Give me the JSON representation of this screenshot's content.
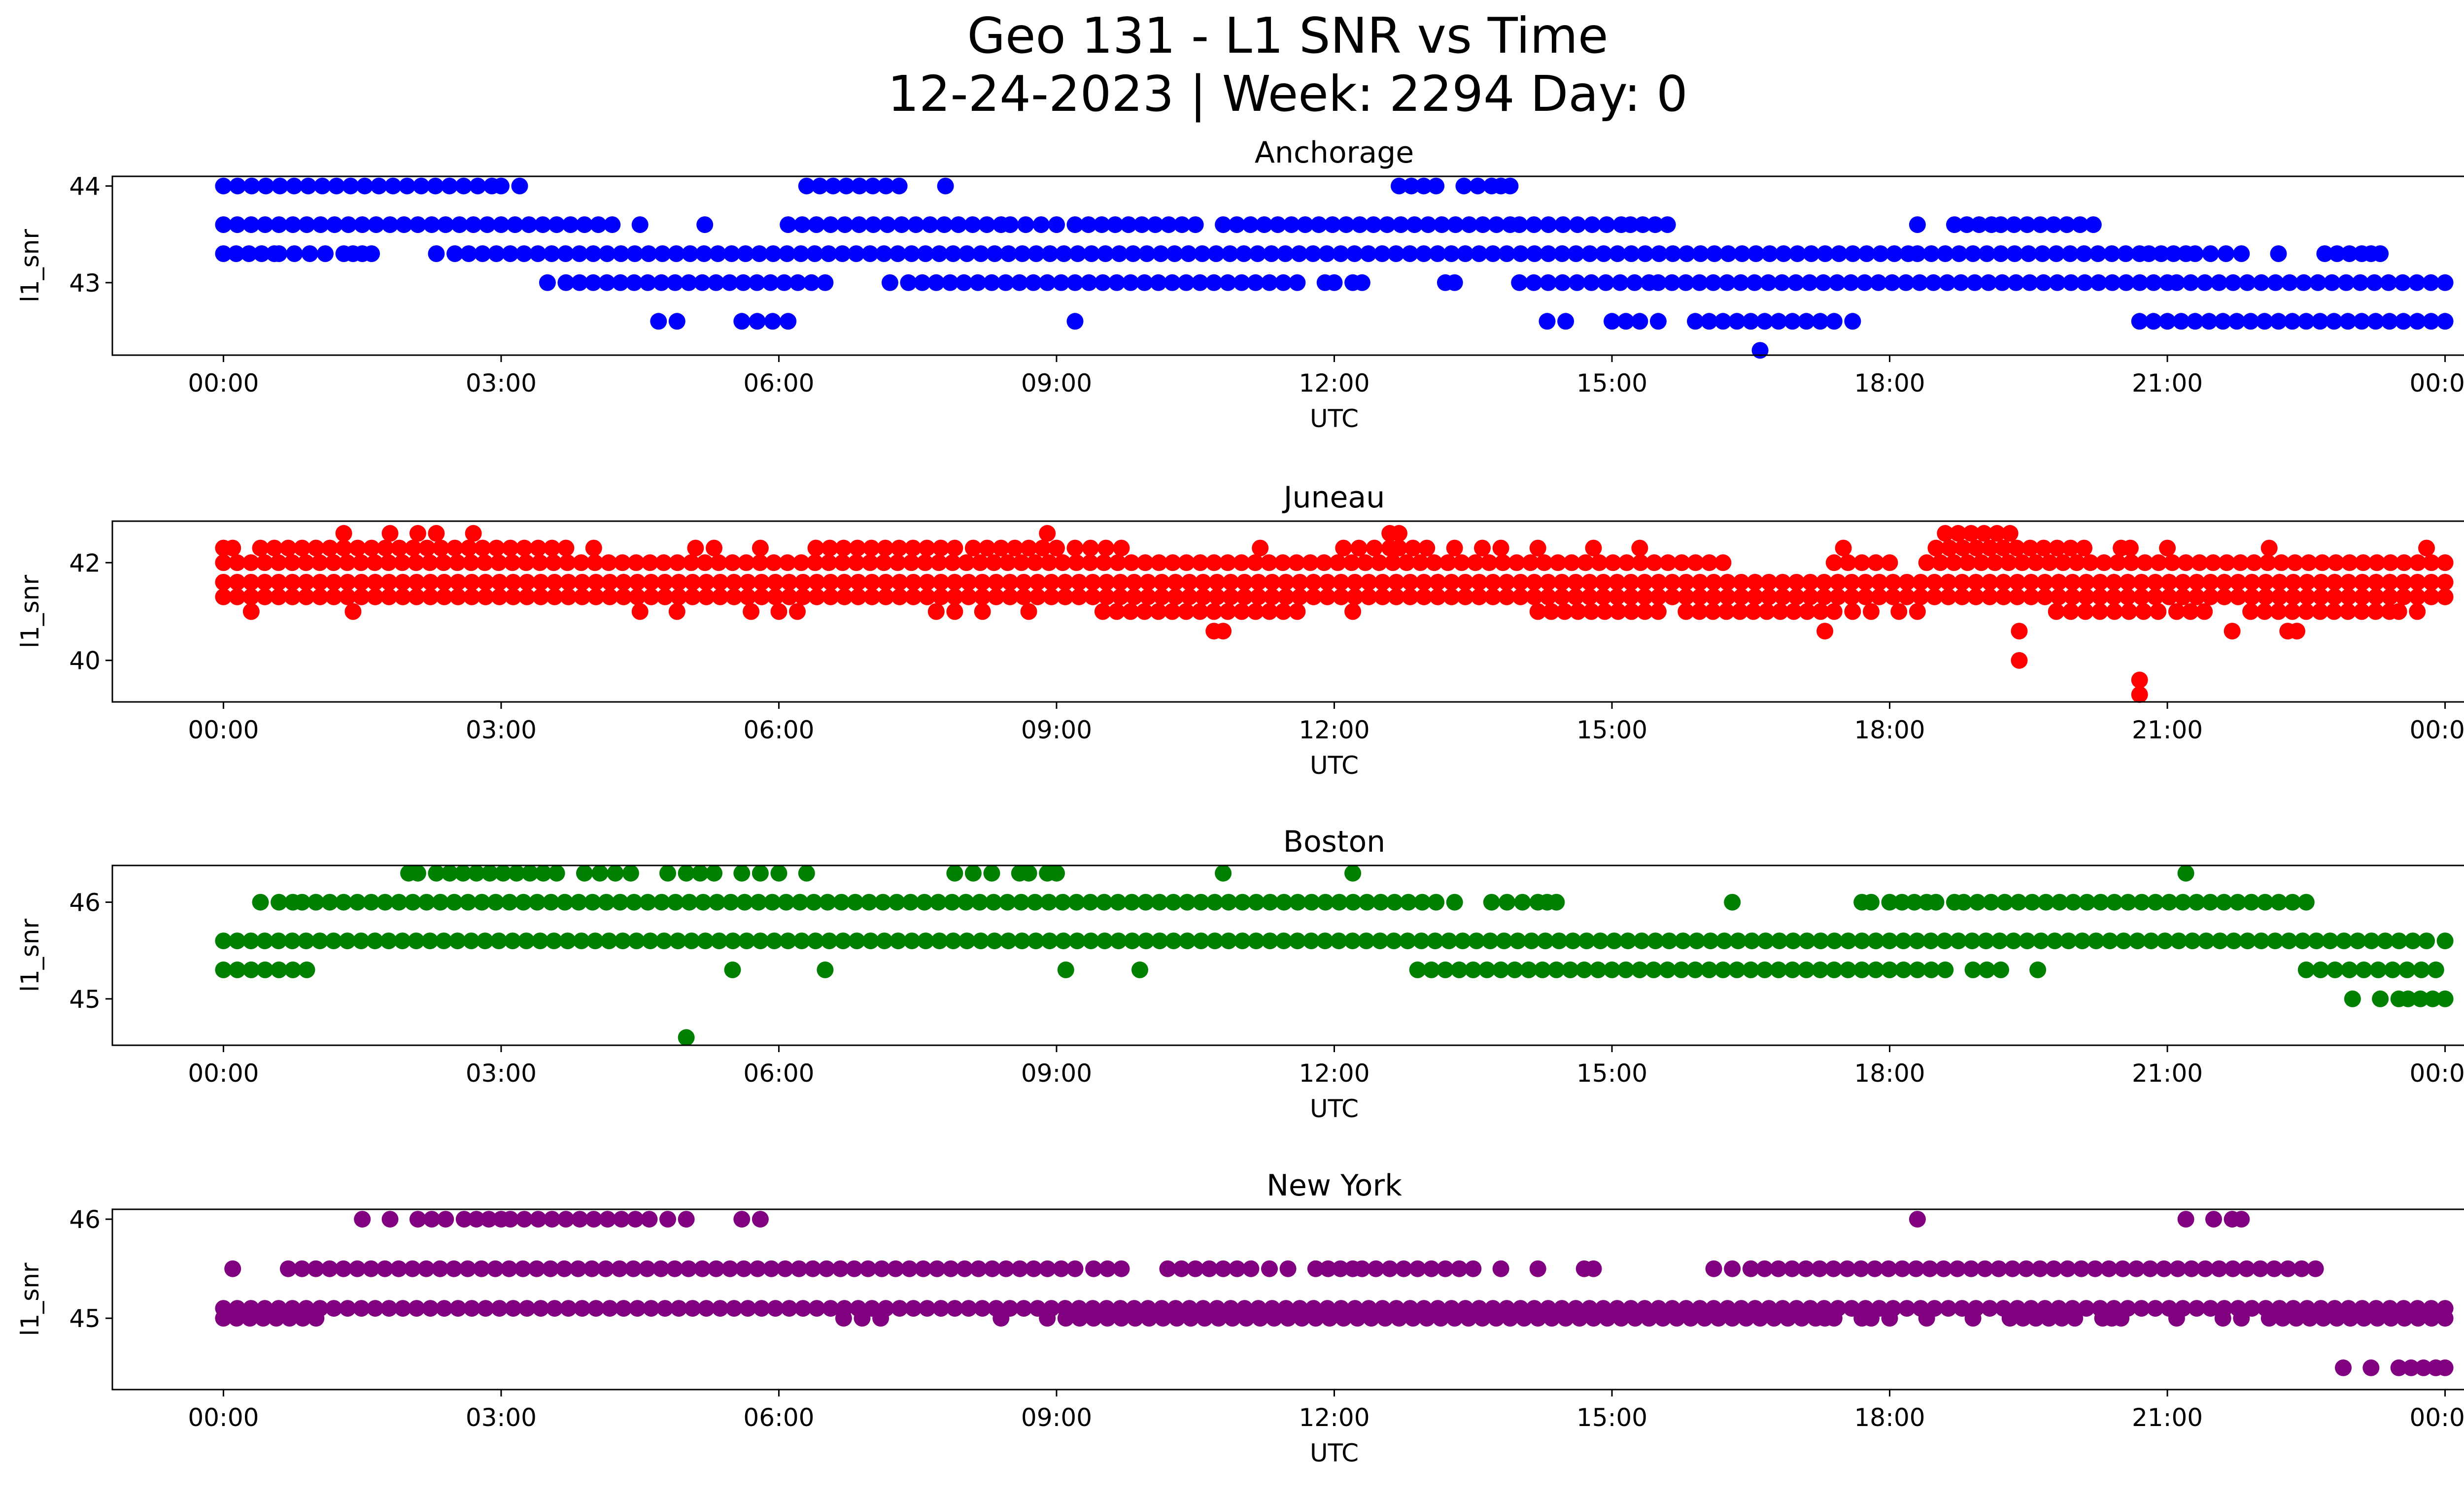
{
  "figure": {
    "title_line1": "Geo 131 - L1 SNR vs Time",
    "title_line2": "12-24-2023 | Week: 2294 Day: 0"
  },
  "chart_data": [
    {
      "type": "scatter",
      "title": "Anchorage",
      "xlabel": "UTC",
      "ylabel": "l1_snr",
      "color": "#0000ff",
      "x_ticks": [
        "00:00",
        "03:00",
        "06:00",
        "09:00",
        "12:00",
        "15:00",
        "18:00",
        "21:00",
        "00:00"
      ],
      "y_ticks": [
        43,
        44
      ],
      "xlim": [
        -1.2,
        25.2
      ],
      "ylim": [
        42.25,
        44.1
      ],
      "grid": false,
      "levels": [
        {
          "y": 44.0,
          "segments": [
            [
              0.0,
              2.9
            ],
            [
              3.0,
              3.2
            ],
            [
              6.3,
              7.3
            ],
            [
              7.8,
              7.8
            ],
            [
              12.7,
              13.1
            ],
            [
              13.4,
              13.7
            ],
            [
              13.8,
              13.9
            ]
          ]
        },
        {
          "y": 43.6,
          "segments": [
            [
              0.0,
              4.2
            ],
            [
              4.5,
              4.5
            ],
            [
              5.2,
              5.2
            ],
            [
              6.1,
              8.4
            ],
            [
              8.5,
              9.0
            ],
            [
              9.2,
              10.5
            ],
            [
              10.8,
              13.9
            ],
            [
              14.0,
              15.1
            ],
            [
              15.2,
              15.6
            ],
            [
              18.3,
              18.3
            ],
            [
              18.7,
              19.1
            ],
            [
              19.2,
              20.2
            ]
          ]
        },
        {
          "y": 43.3,
          "segments": [
            [
              0.0,
              0.55
            ],
            [
              0.6,
              1.1
            ],
            [
              1.3,
              1.4
            ],
            [
              1.5,
              1.6
            ],
            [
              2.3,
              2.3
            ],
            [
              2.5,
              18.2
            ],
            [
              18.3,
              20.7
            ],
            [
              20.8,
              21.2
            ],
            [
              21.3,
              21.8
            ],
            [
              22.2,
              22.2
            ],
            [
              22.7,
              23.1
            ],
            [
              23.2,
              23.3
            ]
          ]
        },
        {
          "y": 43.0,
          "segments": [
            [
              3.5,
              3.5
            ],
            [
              3.7,
              6.5
            ],
            [
              7.2,
              7.2
            ],
            [
              7.4,
              11.6
            ],
            [
              11.9,
              12.0
            ],
            [
              12.2,
              12.3
            ],
            [
              13.2,
              13.3
            ],
            [
              14.0,
              15.4
            ],
            [
              15.5,
              21.0
            ],
            [
              21.1,
              24.0
            ]
          ]
        },
        {
          "y": 42.6,
          "segments": [
            [
              4.7,
              4.7
            ],
            [
              4.9,
              4.9
            ],
            [
              5.6,
              6.1
            ],
            [
              9.2,
              9.2
            ],
            [
              14.3,
              14.5
            ],
            [
              15.0,
              15.3
            ],
            [
              15.5,
              15.5
            ],
            [
              15.9,
              17.4
            ],
            [
              17.6,
              17.6
            ],
            [
              20.7,
              24.0
            ]
          ]
        },
        {
          "y": 42.3,
          "segments": [
            [
              16.6,
              16.6
            ]
          ]
        }
      ]
    },
    {
      "type": "scatter",
      "title": "Juneau",
      "xlabel": "UTC",
      "ylabel": "l1_snr",
      "color": "#ff0000",
      "x_ticks": [
        "00:00",
        "03:00",
        "06:00",
        "09:00",
        "12:00",
        "15:00",
        "18:00",
        "21:00",
        "00:00"
      ],
      "y_ticks": [
        40,
        42
      ],
      "xlim": [
        -1.2,
        25.2
      ],
      "ylim": [
        39.15,
        42.85
      ],
      "grid": false,
      "levels": [
        {
          "y": 42.6,
          "segments": [
            [
              1.3,
              1.3
            ],
            [
              1.8,
              1.8
            ],
            [
              2.1,
              2.3
            ],
            [
              2.7,
              2.7
            ],
            [
              8.9,
              8.9
            ],
            [
              12.6,
              12.7
            ],
            [
              18.6,
              19.3
            ]
          ]
        },
        {
          "y": 42.3,
          "segments": [
            [
              0.0,
              0.1
            ],
            [
              0.4,
              3.7
            ],
            [
              4.0,
              4.0
            ],
            [
              5.1,
              5.3
            ],
            [
              5.8,
              5.8
            ],
            [
              6.4,
              7.9
            ],
            [
              8.1,
              9.0
            ],
            [
              9.2,
              9.7
            ],
            [
              11.2,
              11.2
            ],
            [
              12.1,
              12.6
            ],
            [
              12.7,
              13.0
            ],
            [
              13.3,
              13.3
            ],
            [
              13.6,
              13.8
            ],
            [
              14.2,
              14.2
            ],
            [
              14.8,
              14.8
            ],
            [
              15.3,
              15.3
            ],
            [
              17.5,
              17.5
            ],
            [
              18.5,
              20.1
            ],
            [
              20.5,
              20.6
            ],
            [
              21.0,
              21.0
            ],
            [
              22.1,
              22.1
            ],
            [
              23.8,
              23.8
            ]
          ]
        },
        {
          "y": 42.0,
          "segments": [
            [
              0.0,
              16.2
            ],
            [
              17.4,
              18.0
            ],
            [
              18.4,
              24.0
            ]
          ]
        },
        {
          "y": 41.6,
          "segments": [
            [
              0.0,
              24.0
            ]
          ]
        },
        {
          "y": 41.3,
          "segments": [
            [
              0.0,
              24.0
            ]
          ]
        },
        {
          "y": 41.0,
          "segments": [
            [
              0.3,
              0.3
            ],
            [
              1.4,
              1.4
            ],
            [
              4.5,
              4.5
            ],
            [
              4.9,
              4.9
            ],
            [
              5.7,
              5.7
            ],
            [
              6.0,
              6.2
            ],
            [
              7.7,
              7.9
            ],
            [
              8.2,
              8.2
            ],
            [
              8.7,
              8.7
            ],
            [
              9.5,
              11.6
            ],
            [
              12.2,
              12.2
            ],
            [
              14.2,
              15.5
            ],
            [
              15.8,
              17.4
            ],
            [
              17.6,
              17.8
            ],
            [
              18.1,
              18.3
            ],
            [
              19.8,
              20.9
            ],
            [
              21.1,
              21.4
            ],
            [
              21.9,
              23.4
            ],
            [
              23.5,
              23.7
            ]
          ]
        },
        {
          "y": 40.6,
          "segments": [
            [
              10.7,
              10.8
            ],
            [
              17.3,
              17.3
            ],
            [
              19.4,
              19.4
            ],
            [
              21.7,
              21.7
            ],
            [
              22.3,
              22.4
            ]
          ]
        },
        {
          "y": 40.0,
          "segments": [
            [
              19.4,
              19.4
            ]
          ]
        },
        {
          "y": 39.6,
          "segments": [
            [
              20.7,
              20.7
            ]
          ]
        },
        {
          "y": 39.3,
          "segments": [
            [
              20.7,
              20.7
            ]
          ]
        }
      ]
    },
    {
      "type": "scatter",
      "title": "Boston",
      "xlabel": "UTC",
      "ylabel": "l1_snr",
      "color": "#008000",
      "x_ticks": [
        "00:00",
        "03:00",
        "06:00",
        "09:00",
        "12:00",
        "15:00",
        "18:00",
        "21:00",
        "00:00"
      ],
      "y_ticks": [
        45,
        46
      ],
      "xlim": [
        -1.2,
        25.2
      ],
      "ylim": [
        44.52,
        46.38
      ],
      "grid": false,
      "levels": [
        {
          "y": 46.3,
          "segments": [
            [
              2.0,
              2.1
            ],
            [
              2.3,
              3.6
            ],
            [
              3.9,
              4.4
            ],
            [
              4.8,
              4.8
            ],
            [
              5.0,
              5.3
            ],
            [
              5.6,
              5.6
            ],
            [
              5.8,
              6.0
            ],
            [
              6.3,
              6.3
            ],
            [
              7.9,
              8.1
            ],
            [
              8.3,
              8.3
            ],
            [
              8.6,
              8.7
            ],
            [
              8.9,
              9.0
            ],
            [
              10.8,
              10.8
            ],
            [
              12.2,
              12.2
            ],
            [
              21.2,
              21.2
            ]
          ]
        },
        {
          "y": 46.0,
          "segments": [
            [
              0.4,
              0.45
            ],
            [
              0.6,
              0.75
            ],
            [
              0.85,
              13.1
            ],
            [
              13.3,
              13.3
            ],
            [
              13.7,
              14.2
            ],
            [
              14.3,
              14.4
            ],
            [
              16.3,
              16.3
            ],
            [
              17.7,
              17.8
            ],
            [
              18.0,
              18.4
            ],
            [
              18.5,
              18.5
            ],
            [
              18.7,
              18.7
            ],
            [
              18.8,
              22.5
            ]
          ]
        },
        {
          "y": 45.6,
          "segments": [
            [
              0.0,
              23.8
            ],
            [
              24.0,
              24.0
            ]
          ]
        },
        {
          "y": 45.3,
          "segments": [
            [
              0.0,
              0.9
            ],
            [
              5.5,
              5.5
            ],
            [
              6.5,
              6.5
            ],
            [
              9.1,
              9.1
            ],
            [
              9.9,
              9.9
            ],
            [
              12.9,
              18.6
            ],
            [
              18.9,
              19.2
            ],
            [
              19.6,
              19.6
            ],
            [
              22.5,
              23.9
            ]
          ]
        },
        {
          "y": 45.0,
          "segments": [
            [
              23.0,
              23.0
            ],
            [
              23.3,
              23.5
            ],
            [
              23.6,
              24.0
            ]
          ]
        },
        {
          "y": 44.6,
          "segments": [
            [
              5.0,
              5.0
            ]
          ]
        }
      ]
    },
    {
      "type": "scatter",
      "title": "New York",
      "xlabel": "UTC",
      "ylabel": "l1_snr",
      "color": "#800080",
      "x_ticks": [
        "00:00",
        "03:00",
        "06:00",
        "09:00",
        "12:00",
        "15:00",
        "18:00",
        "21:00",
        "00:00"
      ],
      "y_ticks": [
        45,
        46
      ],
      "xlim": [
        -1.2,
        25.2
      ],
      "ylim": [
        44.28,
        46.1
      ],
      "grid": false,
      "levels": [
        {
          "y": 46.0,
          "segments": [
            [
              1.5,
              1.5
            ],
            [
              1.8,
              1.8
            ],
            [
              2.1,
              2.4
            ],
            [
              2.6,
              3.0
            ],
            [
              3.1,
              4.6
            ],
            [
              4.8,
              5.0
            ],
            [
              5.6,
              5.6
            ],
            [
              5.8,
              5.8
            ],
            [
              18.3,
              18.3
            ],
            [
              21.2,
              21.2
            ],
            [
              21.5,
              21.5
            ],
            [
              21.7,
              21.8
            ]
          ]
        },
        {
          "y": 45.5,
          "segments": [
            [
              0.1,
              0.1
            ],
            [
              0.7,
              9.2
            ],
            [
              9.4,
              9.7
            ],
            [
              10.2,
              11.1
            ],
            [
              11.3,
              11.5
            ],
            [
              11.8,
              12.2
            ],
            [
              12.3,
              13.5
            ],
            [
              13.8,
              13.8
            ],
            [
              14.2,
              14.2
            ],
            [
              14.7,
              14.8
            ],
            [
              16.1,
              16.3
            ],
            [
              16.5,
              22.6
            ]
          ]
        },
        {
          "y": 45.1,
          "segments": [
            [
              0.0,
              24.0
            ]
          ]
        },
        {
          "y": 45.0,
          "segments": [
            [
              0.0,
              1.0
            ],
            [
              6.7,
              6.7
            ],
            [
              6.9,
              7.1
            ],
            [
              8.4,
              8.4
            ],
            [
              8.9,
              8.9
            ],
            [
              9.1,
              17.2
            ],
            [
              17.3,
              17.4
            ],
            [
              17.7,
              17.8
            ],
            [
              18.0,
              18.0
            ],
            [
              18.4,
              18.4
            ],
            [
              18.9,
              18.9
            ],
            [
              19.3,
              20.0
            ],
            [
              20.3,
              20.4
            ],
            [
              20.5,
              20.5
            ],
            [
              21.1,
              21.1
            ],
            [
              21.6,
              21.8
            ],
            [
              22.1,
              24.0
            ]
          ]
        },
        {
          "y": 44.5,
          "segments": [
            [
              22.9,
              22.9
            ],
            [
              23.2,
              23.2
            ],
            [
              23.5,
              23.9
            ],
            [
              23.9,
              24.0
            ]
          ]
        }
      ]
    }
  ]
}
